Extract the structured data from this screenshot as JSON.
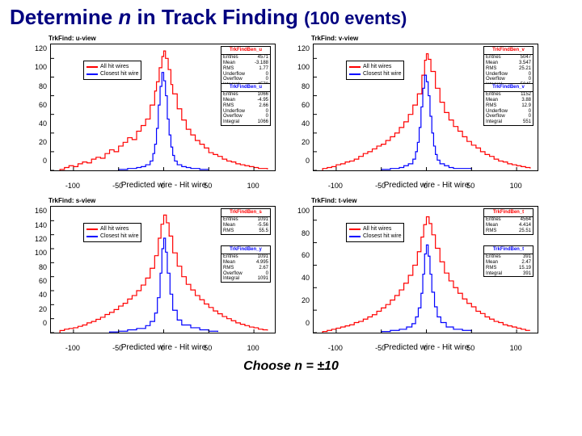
{
  "title_a": "Determine ",
  "title_n": "n",
  "title_b": " in Track Finding ",
  "title_sub": "(100 events)",
  "footer": "Choose n = ±10",
  "xlabel": "Predicted wire - Hit wire",
  "xlim": [
    -125,
    125
  ],
  "xticks": [
    -100,
    -50,
    0,
    50,
    100
  ],
  "stat_labels": [
    "Entries",
    "Mean",
    "RMS",
    "Underflow",
    "Overflow",
    "Integral"
  ],
  "legend": {
    "red": "All hit wires",
    "blue": "Closest hit wire"
  },
  "colors": {
    "red": "#ff0000",
    "blue": "#0000ff",
    "axis": "#000000",
    "bg": "#ffffff"
  },
  "line_width": 1.2,
  "panels": [
    {
      "title": "TrkFind: u-view",
      "ylim": [
        0,
        135
      ],
      "yticks": [
        0,
        20,
        40,
        60,
        80,
        100,
        120
      ],
      "stats1": {
        "name": "TrkFindBen_u",
        "Entries": "4571",
        "Mean": "-3.188",
        "RMS": "1.77",
        "Underflow": "0",
        "Overflow": "0",
        "Integral": "4570"
      },
      "stats2": {
        "name": "TrkFindBen_u",
        "Entries": "1066",
        "Mean": "-4.95",
        "RMS": "2.66",
        "Underflow": "0",
        "Overflow": "0",
        "Integral": "1066"
      },
      "red": [
        [
          -115,
          1
        ],
        [
          -110,
          3
        ],
        [
          -105,
          5
        ],
        [
          -100,
          4
        ],
        [
          -95,
          7
        ],
        [
          -90,
          9
        ],
        [
          -85,
          8
        ],
        [
          -80,
          12
        ],
        [
          -75,
          14
        ],
        [
          -70,
          13
        ],
        [
          -65,
          18
        ],
        [
          -60,
          22
        ],
        [
          -55,
          20
        ],
        [
          -50,
          26
        ],
        [
          -45,
          30
        ],
        [
          -40,
          35
        ],
        [
          -35,
          33
        ],
        [
          -30,
          42
        ],
        [
          -25,
          48
        ],
        [
          -20,
          55
        ],
        [
          -15,
          70
        ],
        [
          -10,
          85
        ],
        [
          -8,
          95
        ],
        [
          -5,
          110
        ],
        [
          -2,
          122
        ],
        [
          0,
          128
        ],
        [
          2,
          120
        ],
        [
          5,
          108
        ],
        [
          8,
          92
        ],
        [
          10,
          82
        ],
        [
          15,
          66
        ],
        [
          20,
          54
        ],
        [
          25,
          44
        ],
        [
          30,
          38
        ],
        [
          35,
          32
        ],
        [
          40,
          28
        ],
        [
          45,
          24
        ],
        [
          50,
          19
        ],
        [
          55,
          17
        ],
        [
          60,
          15
        ],
        [
          65,
          12
        ],
        [
          70,
          10
        ],
        [
          75,
          9
        ],
        [
          80,
          7
        ],
        [
          85,
          6
        ],
        [
          90,
          5
        ],
        [
          95,
          4
        ],
        [
          100,
          3
        ],
        [
          105,
          2
        ],
        [
          110,
          2
        ],
        [
          115,
          1
        ]
      ],
      "blue": [
        [
          -50,
          1
        ],
        [
          -40,
          2
        ],
        [
          -30,
          3
        ],
        [
          -25,
          4
        ],
        [
          -20,
          6
        ],
        [
          -15,
          10
        ],
        [
          -12,
          18
        ],
        [
          -10,
          28
        ],
        [
          -8,
          45
        ],
        [
          -6,
          70
        ],
        [
          -4,
          90
        ],
        [
          -2,
          105
        ],
        [
          0,
          96
        ],
        [
          2,
          80
        ],
        [
          4,
          55
        ],
        [
          6,
          38
        ],
        [
          8,
          25
        ],
        [
          10,
          16
        ],
        [
          12,
          10
        ],
        [
          15,
          6
        ],
        [
          20,
          4
        ],
        [
          25,
          3
        ],
        [
          30,
          2
        ],
        [
          40,
          1
        ],
        [
          50,
          1
        ]
      ]
    },
    {
      "title": "TrkFind: v-view",
      "ylim": [
        0,
        135
      ],
      "yticks": [
        0,
        20,
        40,
        60,
        80,
        100,
        120
      ],
      "stats1": {
        "name": "TrkFindBen_v",
        "Entries": "5047",
        "Mean": "3.547",
        "RMS": "25.21",
        "Underflow": "0",
        "Overflow": "0",
        "Integral": "5045"
      },
      "stats2": {
        "name": "TrkFindBen_v",
        "Entries": "1152",
        "Mean": "3.88",
        "RMS": "12.9",
        "Underflow": "0",
        "Overflow": "0",
        "Integral": "551"
      },
      "red": [
        [
          -115,
          2
        ],
        [
          -110,
          3
        ],
        [
          -105,
          4
        ],
        [
          -100,
          6
        ],
        [
          -95,
          7
        ],
        [
          -90,
          9
        ],
        [
          -85,
          10
        ],
        [
          -80,
          12
        ],
        [
          -75,
          15
        ],
        [
          -70,
          18
        ],
        [
          -65,
          20
        ],
        [
          -60,
          23
        ],
        [
          -55,
          26
        ],
        [
          -50,
          28
        ],
        [
          -45,
          32
        ],
        [
          -40,
          36
        ],
        [
          -35,
          40
        ],
        [
          -30,
          46
        ],
        [
          -25,
          52
        ],
        [
          -20,
          60
        ],
        [
          -15,
          70
        ],
        [
          -10,
          82
        ],
        [
          -5,
          102
        ],
        [
          -2,
          118
        ],
        [
          0,
          125
        ],
        [
          2,
          119
        ],
        [
          5,
          106
        ],
        [
          10,
          88
        ],
        [
          15,
          73
        ],
        [
          20,
          62
        ],
        [
          25,
          54
        ],
        [
          30,
          47
        ],
        [
          35,
          42
        ],
        [
          40,
          36
        ],
        [
          45,
          31
        ],
        [
          50,
          27
        ],
        [
          55,
          24
        ],
        [
          60,
          20
        ],
        [
          65,
          17
        ],
        [
          70,
          15
        ],
        [
          75,
          12
        ],
        [
          80,
          10
        ],
        [
          85,
          9
        ],
        [
          90,
          7
        ],
        [
          95,
          6
        ],
        [
          100,
          5
        ],
        [
          105,
          4
        ],
        [
          110,
          3
        ],
        [
          115,
          2
        ]
      ],
      "blue": [
        [
          -50,
          1
        ],
        [
          -40,
          2
        ],
        [
          -30,
          3
        ],
        [
          -25,
          5
        ],
        [
          -20,
          7
        ],
        [
          -15,
          12
        ],
        [
          -12,
          20
        ],
        [
          -10,
          30
        ],
        [
          -8,
          46
        ],
        [
          -6,
          68
        ],
        [
          -4,
          88
        ],
        [
          -2,
          102
        ],
        [
          0,
          95
        ],
        [
          2,
          80
        ],
        [
          4,
          58
        ],
        [
          6,
          40
        ],
        [
          8,
          26
        ],
        [
          10,
          17
        ],
        [
          12,
          11
        ],
        [
          15,
          7
        ],
        [
          20,
          5
        ],
        [
          25,
          3
        ],
        [
          30,
          2
        ],
        [
          40,
          2
        ],
        [
          50,
          1
        ]
      ]
    },
    {
      "title": "TrkFind: s-view",
      "ylim": [
        0,
        180
      ],
      "yticks": [
        0,
        20,
        40,
        60,
        80,
        100,
        120,
        140,
        160
      ],
      "stats1": {
        "name": "TrkFindBen_s",
        "Entries": "1091",
        "Mean": "-5.56",
        "RMS": "55.5",
        "Underflow": "",
        "Overflow": "",
        "Integral": ""
      },
      "stats2": {
        "name": "TrkFindBen_y",
        "Entries": "1091",
        "Mean": "4.995",
        "RMS": "2.67",
        "Underflow": "",
        "Overflow": "0",
        "Integral": "1091"
      },
      "red": [
        [
          -115,
          3
        ],
        [
          -110,
          5
        ],
        [
          -105,
          6
        ],
        [
          -100,
          7
        ],
        [
          -95,
          9
        ],
        [
          -90,
          11
        ],
        [
          -85,
          14
        ],
        [
          -80,
          16
        ],
        [
          -75,
          19
        ],
        [
          -70,
          22
        ],
        [
          -65,
          26
        ],
        [
          -60,
          29
        ],
        [
          -55,
          33
        ],
        [
          -50,
          38
        ],
        [
          -45,
          42
        ],
        [
          -40,
          48
        ],
        [
          -35,
          53
        ],
        [
          -30,
          60
        ],
        [
          -25,
          68
        ],
        [
          -20,
          78
        ],
        [
          -15,
          92
        ],
        [
          -10,
          110
        ],
        [
          -6,
          135
        ],
        [
          -3,
          155
        ],
        [
          0,
          168
        ],
        [
          3,
          157
        ],
        [
          6,
          138
        ],
        [
          10,
          114
        ],
        [
          15,
          95
        ],
        [
          20,
          80
        ],
        [
          25,
          69
        ],
        [
          30,
          61
        ],
        [
          35,
          53
        ],
        [
          40,
          47
        ],
        [
          45,
          41
        ],
        [
          50,
          36
        ],
        [
          55,
          31
        ],
        [
          60,
          27
        ],
        [
          65,
          23
        ],
        [
          70,
          20
        ],
        [
          75,
          17
        ],
        [
          80,
          14
        ],
        [
          85,
          12
        ],
        [
          90,
          10
        ],
        [
          95,
          8
        ],
        [
          100,
          7
        ],
        [
          105,
          5
        ],
        [
          110,
          4
        ],
        [
          115,
          3
        ]
      ],
      "blue": [
        [
          -60,
          1
        ],
        [
          -50,
          2
        ],
        [
          -40,
          4
        ],
        [
          -30,
          6
        ],
        [
          -20,
          10
        ],
        [
          -15,
          16
        ],
        [
          -10,
          28
        ],
        [
          -7,
          50
        ],
        [
          -4,
          85
        ],
        [
          -2,
          120
        ],
        [
          0,
          135
        ],
        [
          2,
          115
        ],
        [
          4,
          85
        ],
        [
          7,
          55
        ],
        [
          10,
          32
        ],
        [
          15,
          18
        ],
        [
          20,
          11
        ],
        [
          30,
          7
        ],
        [
          40,
          4
        ],
        [
          50,
          2
        ],
        [
          60,
          1
        ]
      ]
    },
    {
      "title": "TrkFind: t-view",
      "ylim": [
        0,
        112
      ],
      "yticks": [
        0,
        20,
        40,
        60,
        80,
        100
      ],
      "stats1": {
        "name": "TrkFindBen_t",
        "Entries": "4564",
        "Mean": "4.414",
        "RMS": "25.51",
        "Underflow": "",
        "Overflow": "",
        "Integral": ""
      },
      "stats2": {
        "name": "TrkFindBen_t",
        "Entries": "391",
        "Mean": "2.47",
        "RMS": "15.19",
        "Underflow": "",
        "Overflow": "",
        "Integral": "391"
      },
      "red": [
        [
          -115,
          1
        ],
        [
          -110,
          2
        ],
        [
          -105,
          3
        ],
        [
          -100,
          4
        ],
        [
          -95,
          5
        ],
        [
          -90,
          6
        ],
        [
          -85,
          7
        ],
        [
          -80,
          9
        ],
        [
          -75,
          10
        ],
        [
          -70,
          12
        ],
        [
          -65,
          14
        ],
        [
          -60,
          16
        ],
        [
          -55,
          19
        ],
        [
          -50,
          22
        ],
        [
          -45,
          25
        ],
        [
          -40,
          29
        ],
        [
          -35,
          33
        ],
        [
          -30,
          38
        ],
        [
          -25,
          44
        ],
        [
          -20,
          51
        ],
        [
          -15,
          60
        ],
        [
          -10,
          72
        ],
        [
          -6,
          85
        ],
        [
          -3,
          96
        ],
        [
          0,
          103
        ],
        [
          3,
          97
        ],
        [
          6,
          87
        ],
        [
          10,
          75
        ],
        [
          15,
          63
        ],
        [
          20,
          53
        ],
        [
          25,
          46
        ],
        [
          30,
          40
        ],
        [
          35,
          35
        ],
        [
          40,
          30
        ],
        [
          45,
          26
        ],
        [
          50,
          23
        ],
        [
          55,
          19
        ],
        [
          60,
          17
        ],
        [
          65,
          14
        ],
        [
          70,
          12
        ],
        [
          75,
          10
        ],
        [
          80,
          9
        ],
        [
          85,
          7
        ],
        [
          90,
          6
        ],
        [
          95,
          5
        ],
        [
          100,
          4
        ],
        [
          105,
          3
        ],
        [
          110,
          2
        ],
        [
          115,
          2
        ]
      ],
      "blue": [
        [
          -50,
          1
        ],
        [
          -40,
          2
        ],
        [
          -30,
          3
        ],
        [
          -22,
          5
        ],
        [
          -16,
          8
        ],
        [
          -12,
          14
        ],
        [
          -9,
          22
        ],
        [
          -6,
          35
        ],
        [
          -4,
          52
        ],
        [
          -2,
          70
        ],
        [
          0,
          78
        ],
        [
          2,
          68
        ],
        [
          4,
          52
        ],
        [
          6,
          36
        ],
        [
          9,
          23
        ],
        [
          12,
          14
        ],
        [
          16,
          9
        ],
        [
          22,
          5
        ],
        [
          30,
          3
        ],
        [
          40,
          2
        ],
        [
          50,
          1
        ]
      ]
    }
  ]
}
